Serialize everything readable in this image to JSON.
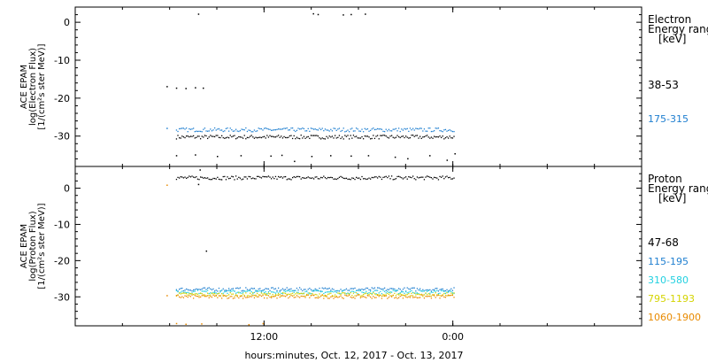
{
  "chart_data": [
    {
      "type": "scatter",
      "ylabel": [
        "ACE EPAM",
        "log(Electron Flux)",
        "[1/(cm²s ster MeV)]"
      ],
      "ylim": [
        -38,
        4
      ],
      "yticks": [
        0,
        -10,
        -20,
        -30
      ],
      "legend_title": [
        "Electron",
        "Energy range",
        "[keV]"
      ],
      "series": [
        {
          "name": "38-53",
          "color": "#000000",
          "bands": [
            {
              "t0": 6.4,
              "t1": 24.1,
              "y": -30.1
            }
          ],
          "points": [
            [
              5.8,
              -16.8
            ],
            [
              6.4,
              -17.2
            ],
            [
              7.0,
              -17.3
            ],
            [
              7.6,
              -17.1
            ],
            [
              8.1,
              -17.2
            ],
            [
              7.8,
              2.3
            ],
            [
              15.1,
              2.4
            ],
            [
              15.4,
              2.2
            ],
            [
              17.0,
              2.1
            ],
            [
              17.5,
              2.2
            ],
            [
              18.4,
              2.3
            ],
            [
              6.4,
              -35.0
            ],
            [
              7.6,
              -34.8
            ],
            [
              9.0,
              -35.2
            ],
            [
              10.5,
              -35.0
            ],
            [
              12.4,
              -35.1
            ],
            [
              13.1,
              -34.9
            ],
            [
              13.9,
              -36.5
            ],
            [
              15.0,
              -35.2
            ],
            [
              16.2,
              -35.0
            ],
            [
              17.5,
              -35.1
            ],
            [
              18.6,
              -35.0
            ],
            [
              20.3,
              -35.4
            ],
            [
              21.1,
              -35.8
            ],
            [
              22.5,
              -35.0
            ],
            [
              23.6,
              -36.2
            ],
            [
              24.1,
              -34.5
            ]
          ]
        },
        {
          "name": "175-315",
          "color": "#1f7fd0",
          "bands": [
            {
              "t0": 6.4,
              "t1": 24.1,
              "y": -28.2
            }
          ],
          "points": [
            [
              5.8,
              -27.8
            ]
          ]
        }
      ]
    },
    {
      "type": "scatter",
      "ylabel": [
        "ACE EPAM",
        "log(Proton Flux)",
        "[1/(cm²s ster MeV)]"
      ],
      "ylim": [
        -38,
        6
      ],
      "yticks": [
        0,
        -10,
        -20,
        -30
      ],
      "legend_title": [
        "Proton",
        "Energy range",
        "[keV]"
      ],
      "series": [
        {
          "name": "47-68",
          "color": "#000000",
          "bands": [
            {
              "t0": 6.4,
              "t1": 24.1,
              "y": 3.0
            }
          ],
          "points": [
            [
              7.9,
              5.2
            ],
            [
              7.8,
              1.2
            ],
            [
              8.3,
              -17.2
            ]
          ]
        },
        {
          "name": "115-195",
          "color": "#1f7fd0",
          "bands": [
            {
              "t0": 6.4,
              "t1": 24.1,
              "y": -27.8
            }
          ],
          "points": []
        },
        {
          "name": "310-580",
          "color": "#22d0e0",
          "bands": [
            {
              "t0": 6.4,
              "t1": 24.1,
              "y": -28.5
            }
          ],
          "points": []
        },
        {
          "name": "795-1193",
          "color": "#d4d400",
          "bands": [
            {
              "t0": 6.4,
              "t1": 24.1,
              "y": -29.2
            }
          ],
          "points": []
        },
        {
          "name": "1060-1900",
          "color": "#e88a00",
          "bands": [
            {
              "t0": 6.4,
              "t1": 24.1,
              "y": -29.8
            }
          ],
          "points": [
            [
              5.8,
              1.0
            ],
            [
              5.8,
              -29.5
            ],
            [
              6.4,
              -37.2
            ],
            [
              7.0,
              -37.4
            ],
            [
              8.0,
              -37.3
            ],
            [
              11.0,
              -37.5
            ],
            [
              11.9,
              -37.2
            ]
          ]
        }
      ]
    }
  ],
  "x_axis": {
    "range_hours": [
      0,
      36
    ],
    "ticks": [
      {
        "t": 0,
        "label": ""
      },
      {
        "t": 12,
        "label": "12:00"
      },
      {
        "t": 24,
        "label": "0:00"
      },
      {
        "t": 36,
        "label": ""
      }
    ],
    "xlabel": "hours:minutes, Oct. 12, 2017 - Oct. 13, 2017"
  }
}
